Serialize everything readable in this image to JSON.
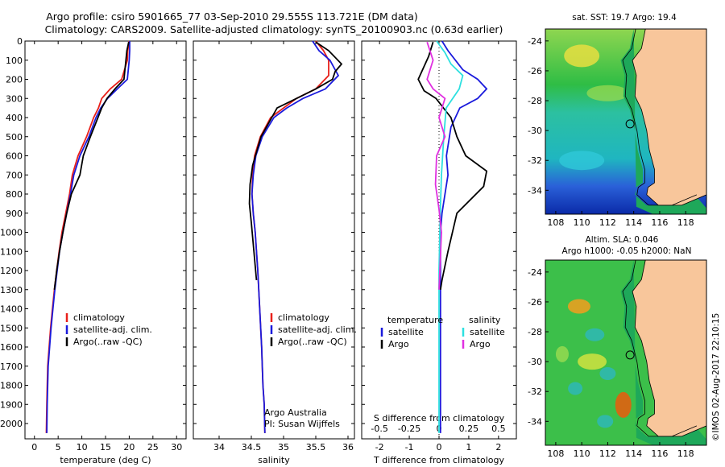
{
  "titles": {
    "line1": "Argo profile: csiro 5901665_77 03-Sep-2010 29.555S 113.721E (DM data)",
    "line2": "Climatology: CARS2009. Satellite-adjusted climatology: synTS_20100903.nc (0.63d earlier)"
  },
  "colors": {
    "climatology": "#e8201a",
    "satellite": "#1a1adc",
    "argo": "#000000",
    "salinity_sat": "#2de0e0",
    "salinity_argo": "#e030e0",
    "land": "#f8c69b",
    "shelf": "#1ea85a"
  },
  "depth_axis": {
    "ticks": [
      "0",
      "100",
      "200",
      "300",
      "400",
      "500",
      "600",
      "700",
      "800",
      "900",
      "1000",
      "1100",
      "1200",
      "1300",
      "1400",
      "1500",
      "1600",
      "1700",
      "1800",
      "1900",
      "2000"
    ]
  },
  "chart_data": [
    {
      "type": "line",
      "xlabel": "temperature (deg C)",
      "xticks": [
        "0",
        "5",
        "10",
        "15",
        "20",
        "25",
        "30"
      ],
      "xlim": [
        -2,
        32
      ],
      "ylim": [
        2080,
        0
      ],
      "legend": [
        "climatology",
        "satellite-adj. clim.",
        "Argo(..raw -QC)"
      ],
      "series": [
        {
          "name": "climatology",
          "x": [
            20,
            19.7,
            19.6,
            18.4,
            16,
            14.2,
            13.5,
            12.5,
            11,
            9.2,
            8,
            7.4,
            6.6,
            5.8,
            5.2,
            4.7,
            4.2,
            3.8,
            3.4,
            3.1,
            2.8,
            2.6,
            2.5
          ],
          "y": [
            0,
            50,
            100,
            200,
            250,
            300,
            350,
            400,
            500,
            600,
            700,
            800,
            900,
            1000,
            1100,
            1200,
            1300,
            1400,
            1500,
            1600,
            1700,
            1900,
            2050
          ]
        },
        {
          "name": "satellite-adj. clim.",
          "x": [
            20.1,
            20.1,
            20,
            19.6,
            17.5,
            15.4,
            14,
            13,
            11.5,
            9.6,
            8.3,
            7.6,
            6.8,
            6,
            5.3,
            4.8,
            4.3,
            3.9,
            3.5,
            3.2,
            2.9,
            2.7,
            2.6
          ],
          "y": [
            0,
            50,
            100,
            200,
            250,
            300,
            350,
            400,
            500,
            600,
            700,
            800,
            900,
            1000,
            1100,
            1200,
            1300,
            1400,
            1500,
            1600,
            1700,
            1900,
            2050
          ]
        },
        {
          "name": "Argo(..raw -QC)",
          "x": [
            19.9,
            19.5,
            19.3,
            18.9,
            17,
            15.3,
            14.2,
            13.4,
            11.8,
            10.3,
            9.6,
            7.8,
            6.8,
            6,
            5.3,
            4.7,
            4.2
          ],
          "y": [
            5,
            50,
            100,
            200,
            250,
            300,
            350,
            400,
            500,
            600,
            700,
            800,
            900,
            1000,
            1100,
            1200,
            1300
          ]
        }
      ]
    },
    {
      "type": "line",
      "xlabel": "salinity",
      "xticks": [
        "34",
        "34.5",
        "35",
        "35.5",
        "36"
      ],
      "xlim": [
        33.6,
        36.1
      ],
      "ylim": [
        2080,
        0
      ],
      "legend": [
        "climatology",
        "satellite-adj. clim.",
        "Argo(..raw -QC)"
      ],
      "series": [
        {
          "name": "climatology",
          "x": [
            35.5,
            35.62,
            35.7,
            35.7,
            35.5,
            35.2,
            35.0,
            34.8,
            34.64,
            34.55,
            34.52,
            34.51,
            34.53,
            34.56,
            34.6,
            34.63,
            34.66,
            34.68,
            34.7,
            34.71
          ],
          "y": [
            0,
            50,
            100,
            180,
            250,
            300,
            350,
            400,
            500,
            600,
            700,
            800,
            900,
            1000,
            1200,
            1400,
            1600,
            1800,
            1900,
            2050
          ]
        },
        {
          "name": "satellite-adj. clim.",
          "x": [
            35.45,
            35.55,
            35.72,
            35.85,
            35.65,
            35.3,
            35.05,
            34.85,
            34.67,
            34.57,
            34.53,
            34.51,
            34.53,
            34.56,
            34.6,
            34.63,
            34.66,
            34.68,
            34.7,
            34.71
          ],
          "y": [
            0,
            50,
            100,
            180,
            250,
            300,
            350,
            400,
            500,
            600,
            700,
            800,
            900,
            1000,
            1200,
            1400,
            1600,
            1800,
            1900,
            2050
          ]
        },
        {
          "name": "Argo(..raw -QC)",
          "x": [
            35.5,
            35.7,
            35.9,
            35.8,
            35.76,
            35.5,
            35.2,
            34.9,
            34.65,
            34.52,
            34.48,
            34.47,
            34.5,
            34.54,
            34.58
          ],
          "y": [
            5,
            50,
            120,
            160,
            200,
            250,
            300,
            350,
            500,
            650,
            750,
            850,
            950,
            1100,
            1250
          ]
        }
      ]
    },
    {
      "type": "line",
      "xlabel": "T difference from climatology",
      "xlabel2": "S difference from climatology",
      "xticks": [
        "-2",
        "-1",
        "0",
        "1",
        "2"
      ],
      "xticks2": [
        "-0.5",
        "-0.25",
        "0",
        "0.25",
        "0.5"
      ],
      "xlim": [
        -2.6,
        2.6
      ],
      "ylim": [
        2080,
        0
      ],
      "legend": {
        "temperature_title": "temperature",
        "salinity_title": "salinity",
        "items": [
          "satellite",
          "Argo",
          "satellite",
          "Argo"
        ]
      },
      "series": [
        {
          "name": "satellite",
          "group": "temperature",
          "x": [
            0.1,
            0.3,
            0.8,
            1.3,
            1.6,
            1.3,
            0.7,
            0.4,
            0.25,
            0.3,
            0.2,
            0.1,
            0.05,
            0.05,
            0.05,
            0.05,
            0.05
          ],
          "y": [
            0,
            50,
            150,
            200,
            250,
            300,
            350,
            450,
            600,
            700,
            800,
            900,
            1000,
            1200,
            1500,
            1800,
            2050
          ]
        },
        {
          "name": "Argo",
          "group": "temperature",
          "x": [
            -0.2,
            -0.35,
            -0.7,
            -0.5,
            -0.1,
            0.4,
            0.6,
            0.9,
            1.6,
            1.5,
            0.6,
            0.3,
            0.1,
            0.05
          ],
          "y": [
            5,
            80,
            200,
            260,
            300,
            400,
            500,
            600,
            680,
            760,
            900,
            1100,
            1250,
            1300
          ]
        },
        {
          "name": "satellite",
          "group": "salinity",
          "x": [
            -0.02,
            0.05,
            0.1,
            0.2,
            0.17,
            0.06,
            0.04,
            0.02,
            0.01,
            0.0,
            0.0,
            0.0
          ],
          "y": [
            0,
            60,
            120,
            180,
            250,
            350,
            500,
            700,
            900,
            1200,
            1600,
            2050
          ]
        },
        {
          "name": "Argo",
          "group": "salinity",
          "x": [
            -0.1,
            -0.05,
            -0.1,
            -0.05,
            0.05,
            0.0,
            0.05,
            -0.02,
            -0.03,
            0.0,
            0.02,
            0.0
          ],
          "y": [
            5,
            100,
            200,
            250,
            300,
            400,
            500,
            600,
            750,
            880,
            1000,
            1300
          ]
        }
      ]
    }
  ],
  "maps": [
    {
      "title": "sat. SST: 19.7 Argo: 19.4",
      "title2": "",
      "yticks": [
        "-24",
        "-26",
        "-28",
        "-30",
        "-32",
        "-34"
      ],
      "xticks": [
        "108",
        "110",
        "112",
        "114",
        "116",
        "118"
      ]
    },
    {
      "title": "Altim. SLA: 0.046",
      "title2": "Argo h1000: -0.05 h2000: NaN",
      "yticks": [
        "-24",
        "-26",
        "-28",
        "-30",
        "-32",
        "-34"
      ],
      "xticks": [
        "108",
        "110",
        "112",
        "114",
        "116",
        "118"
      ]
    }
  ],
  "notes": {
    "line1": "Argo Australia",
    "line2": "PI: Susan Wijffels"
  },
  "stamp": "©IMOS 02-Aug-2017 22:10:15"
}
